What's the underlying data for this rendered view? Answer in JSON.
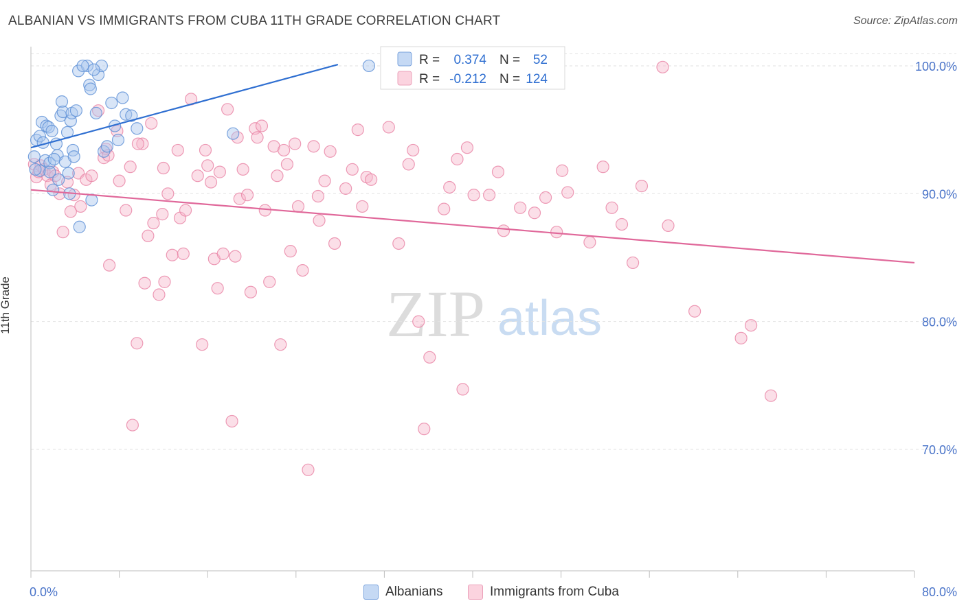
{
  "header": {
    "title": "ALBANIAN VS IMMIGRANTS FROM CUBA 11TH GRADE CORRELATION CHART",
    "source": "Source: ZipAtlas.com"
  },
  "watermark": {
    "zip": "ZIP",
    "atlas": "atlas"
  },
  "legend_box": {
    "row1": {
      "r_label": "R =",
      "r_value": "0.374",
      "n_label": "N =",
      "n_value": "52"
    },
    "row2": {
      "r_label": "R =",
      "r_value": "-0.212",
      "n_label": "N =",
      "n_value": "124"
    }
  },
  "bottom_legend": {
    "albanians": "Albanians",
    "cuba": "Immigrants from Cuba"
  },
  "colors": {
    "blue_fill": "#a9c6ee",
    "blue_stroke": "#5b8fd6",
    "blue_line": "#2f6fd1",
    "pink_fill": "#f6b9cc",
    "pink_stroke": "#e882a4",
    "pink_line": "#e0689a",
    "axis_text": "#4a74c9"
  },
  "chart_data": {
    "type": "scatter",
    "title": "ALBANIAN VS IMMIGRANTS FROM CUBA 11TH GRADE CORRELATION CHART",
    "xlabel": "",
    "ylabel": "11th Grade",
    "xlim": [
      0,
      80
    ],
    "ylim": [
      60.5,
      101.5
    ],
    "x_tick_labels": [
      "0.0%",
      "80.0%"
    ],
    "y_ticks": [
      70,
      80,
      90,
      100
    ],
    "y_tick_labels": [
      "70.0%",
      "80.0%",
      "90.0%",
      "100.0%"
    ],
    "grid": true,
    "legend_position": "top-center",
    "series": [
      {
        "name": "Albanians",
        "r": 0.374,
        "n": 52,
        "trend": {
          "x": [
            0,
            27.8
          ],
          "y": [
            93.6,
            100.1
          ]
        },
        "points": [
          [
            0.3,
            92.9
          ],
          [
            0.5,
            94.2
          ],
          [
            0.8,
            94.5
          ],
          [
            0.8,
            91.8
          ],
          [
            1.0,
            95.6
          ],
          [
            1.1,
            94.0
          ],
          [
            1.3,
            92.6
          ],
          [
            1.4,
            95.3
          ],
          [
            1.6,
            95.2
          ],
          [
            1.7,
            92.4
          ],
          [
            1.9,
            94.9
          ],
          [
            2.0,
            90.3
          ],
          [
            2.3,
            93.9
          ],
          [
            2.4,
            93.0
          ],
          [
            2.5,
            91.1
          ],
          [
            2.7,
            96.1
          ],
          [
            2.8,
            97.2
          ],
          [
            2.9,
            96.4
          ],
          [
            3.1,
            92.5
          ],
          [
            3.3,
            94.8
          ],
          [
            3.5,
            90.0
          ],
          [
            3.6,
            95.7
          ],
          [
            3.7,
            96.3
          ],
          [
            3.8,
            93.4
          ],
          [
            3.9,
            92.9
          ],
          [
            4.1,
            96.5
          ],
          [
            4.3,
            99.6
          ],
          [
            4.4,
            87.4
          ],
          [
            5.1,
            100.0
          ],
          [
            5.3,
            98.5
          ],
          [
            5.4,
            98.2
          ],
          [
            5.5,
            89.5
          ],
          [
            5.9,
            96.3
          ],
          [
            6.1,
            99.3
          ],
          [
            6.6,
            93.3
          ],
          [
            6.9,
            93.7
          ],
          [
            7.3,
            97.1
          ],
          [
            7.6,
            95.3
          ],
          [
            7.9,
            94.2
          ],
          [
            8.3,
            97.5
          ],
          [
            8.6,
            96.2
          ],
          [
            9.1,
            96.1
          ],
          [
            9.6,
            95.1
          ],
          [
            18.3,
            94.7
          ],
          [
            30.6,
            100.0
          ],
          [
            0.4,
            91.9
          ],
          [
            1.7,
            91.7
          ],
          [
            2.1,
            92.7
          ],
          [
            3.4,
            91.6
          ],
          [
            6.4,
            100.0
          ],
          [
            4.7,
            100.0
          ],
          [
            5.7,
            99.7
          ]
        ]
      },
      {
        "name": "Immigrants from Cuba",
        "r": -0.212,
        "n": 124,
        "trend": {
          "x": [
            0,
            80
          ],
          "y": [
            90.3,
            84.6
          ]
        },
        "points": [
          [
            0.3,
            92.3
          ],
          [
            0.5,
            91.3
          ],
          [
            0.7,
            91.7
          ],
          [
            0.9,
            92.2
          ],
          [
            1.2,
            91.9
          ],
          [
            1.5,
            91.4
          ],
          [
            1.8,
            90.7
          ],
          [
            2.0,
            91.7
          ],
          [
            2.2,
            91.4
          ],
          [
            2.6,
            90.0
          ],
          [
            2.9,
            87.0
          ],
          [
            3.3,
            90.9
          ],
          [
            3.6,
            88.6
          ],
          [
            3.9,
            89.9
          ],
          [
            4.3,
            91.6
          ],
          [
            4.5,
            89.0
          ],
          [
            5.0,
            91.1
          ],
          [
            5.5,
            91.4
          ],
          [
            6.1,
            96.5
          ],
          [
            6.6,
            92.8
          ],
          [
            6.8,
            93.5
          ],
          [
            7.0,
            93.0
          ],
          [
            7.1,
            84.4
          ],
          [
            7.8,
            94.9
          ],
          [
            8.0,
            91.0
          ],
          [
            8.6,
            88.7
          ],
          [
            9.0,
            92.1
          ],
          [
            9.2,
            71.9
          ],
          [
            9.6,
            78.3
          ],
          [
            10.1,
            93.9
          ],
          [
            10.3,
            83.0
          ],
          [
            10.6,
            86.7
          ],
          [
            10.9,
            95.5
          ],
          [
            11.1,
            87.7
          ],
          [
            11.6,
            82.1
          ],
          [
            11.9,
            88.4
          ],
          [
            12.1,
            83.1
          ],
          [
            12.4,
            90.0
          ],
          [
            12.8,
            85.2
          ],
          [
            13.3,
            93.4
          ],
          [
            13.5,
            88.1
          ],
          [
            13.8,
            85.3
          ],
          [
            14.0,
            88.7
          ],
          [
            14.5,
            97.4
          ],
          [
            15.1,
            91.4
          ],
          [
            15.5,
            78.2
          ],
          [
            15.8,
            93.4
          ],
          [
            16.0,
            92.2
          ],
          [
            16.3,
            90.9
          ],
          [
            16.6,
            84.9
          ],
          [
            16.9,
            82.6
          ],
          [
            17.1,
            91.7
          ],
          [
            17.4,
            85.3
          ],
          [
            17.8,
            96.6
          ],
          [
            18.2,
            72.2
          ],
          [
            18.5,
            85.1
          ],
          [
            18.7,
            94.4
          ],
          [
            18.9,
            89.6
          ],
          [
            19.2,
            91.9
          ],
          [
            19.6,
            89.9
          ],
          [
            19.9,
            82.3
          ],
          [
            20.3,
            95.1
          ],
          [
            20.5,
            94.4
          ],
          [
            20.9,
            95.3
          ],
          [
            21.2,
            88.7
          ],
          [
            21.6,
            83.1
          ],
          [
            22.0,
            93.7
          ],
          [
            22.3,
            91.4
          ],
          [
            22.6,
            78.2
          ],
          [
            22.9,
            93.4
          ],
          [
            23.2,
            92.3
          ],
          [
            23.5,
            85.5
          ],
          [
            23.9,
            93.9
          ],
          [
            24.2,
            89.0
          ],
          [
            24.6,
            84.0
          ],
          [
            25.1,
            68.4
          ],
          [
            25.6,
            93.7
          ],
          [
            26.1,
            87.9
          ],
          [
            26.6,
            91.0
          ],
          [
            27.1,
            93.3
          ],
          [
            27.5,
            86.1
          ],
          [
            28.5,
            90.4
          ],
          [
            29.1,
            91.9
          ],
          [
            29.6,
            95.0
          ],
          [
            30.0,
            89.0
          ],
          [
            30.4,
            91.3
          ],
          [
            30.8,
            91.1
          ],
          [
            32.4,
            95.2
          ],
          [
            33.3,
            86.1
          ],
          [
            34.2,
            92.3
          ],
          [
            34.6,
            93.4
          ],
          [
            35.1,
            80.0
          ],
          [
            35.6,
            71.6
          ],
          [
            36.1,
            77.2
          ],
          [
            37.4,
            88.8
          ],
          [
            37.9,
            90.5
          ],
          [
            38.6,
            92.7
          ],
          [
            39.1,
            74.7
          ],
          [
            39.5,
            93.6
          ],
          [
            40.1,
            89.9
          ],
          [
            41.5,
            89.9
          ],
          [
            42.3,
            91.7
          ],
          [
            42.8,
            87.1
          ],
          [
            44.3,
            88.9
          ],
          [
            45.6,
            88.5
          ],
          [
            46.6,
            89.7
          ],
          [
            47.6,
            87.0
          ],
          [
            48.1,
            91.8
          ],
          [
            48.6,
            90.1
          ],
          [
            50.6,
            86.2
          ],
          [
            51.8,
            92.1
          ],
          [
            52.6,
            88.9
          ],
          [
            53.5,
            87.6
          ],
          [
            54.5,
            84.6
          ],
          [
            55.3,
            90.6
          ],
          [
            57.2,
            99.9
          ],
          [
            57.7,
            87.5
          ],
          [
            60.1,
            80.8
          ],
          [
            64.3,
            78.7
          ],
          [
            65.2,
            79.7
          ],
          [
            67.0,
            74.2
          ],
          [
            9.7,
            93.9
          ],
          [
            12.0,
            92.0
          ],
          [
            26.0,
            89.8
          ]
        ]
      }
    ]
  }
}
